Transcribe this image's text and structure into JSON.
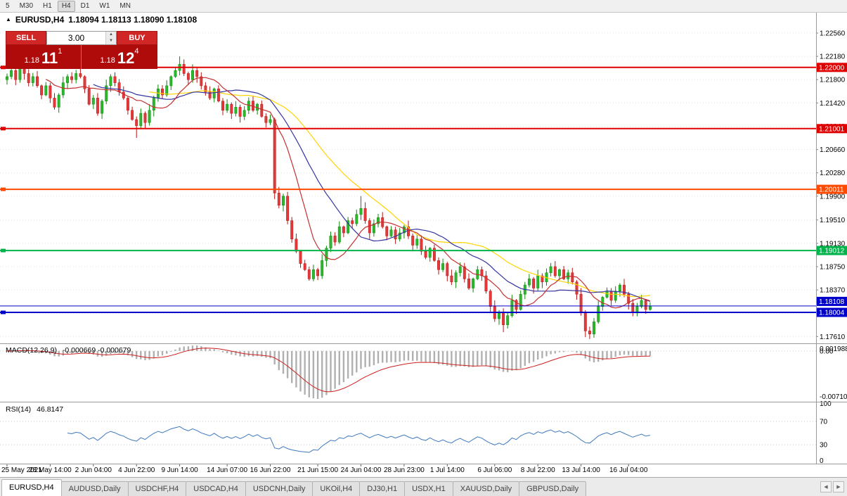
{
  "toolbar": {
    "items": [
      "5",
      "M30",
      "H1",
      "H4",
      "D1",
      "W1",
      "MN"
    ],
    "active": "H4"
  },
  "chart": {
    "marker": "▲",
    "symbol": "EURUSD,H4",
    "ohlc": "1.18094 1.18113 1.18090 1.18108"
  },
  "one_click": {
    "sell_label": "SELL",
    "buy_label": "BUY",
    "volume": "3.00",
    "spinner_up": "▲",
    "spinner_down": "▼",
    "sell_price": {
      "base": "1.18",
      "pips": "11",
      "sup": "1"
    },
    "buy_price": {
      "base": "1.18",
      "pips": "12",
      "sup": "4"
    }
  },
  "chart_data": {
    "type": "candlestick",
    "symbol": "EURUSD",
    "period": "H4",
    "price_axis": {
      "labels": [
        "1.22560",
        "1.22180",
        "1.21800",
        "1.21420",
        "1.21040",
        "1.20660",
        "1.20280",
        "1.19900",
        "1.19510",
        "1.19130",
        "1.18750",
        "1.18370",
        "1.17990",
        "1.17610"
      ],
      "visible_range": {
        "top": 1.2287,
        "bottom": 1.1751
      }
    },
    "time_axis": {
      "labels": [
        "25 May 2021",
        "28 May 14:00",
        "2 Jun 04:00",
        "4 Jun 22:00",
        "9 Jun 14:00",
        "14 Jun 07:00",
        "16 Jun 22:00",
        "21 Jun 15:00",
        "24 Jun 04:00",
        "28 Jun 23:00",
        "1 Jul 14:00",
        "6 Jul 06:00",
        "8 Jul 22:00",
        "13 Jul 14:00",
        "16 Jul 04:00"
      ],
      "indices": [
        0,
        10,
        20,
        30,
        40,
        51,
        61,
        72,
        82,
        92,
        102,
        113,
        123,
        133,
        144
      ]
    },
    "open_first": 1.218,
    "closes": [
      1.2185,
      1.2195,
      1.218,
      1.22,
      1.219,
      1.2175,
      1.2185,
      1.217,
      1.2155,
      1.217,
      1.215,
      1.2135,
      1.2155,
      1.2175,
      1.2185,
      1.218,
      1.219,
      1.2185,
      1.2165,
      1.214,
      1.215,
      1.2125,
      1.2145,
      1.217,
      1.2185,
      1.2175,
      1.216,
      1.215,
      1.213,
      1.2115,
      1.2105,
      1.2125,
      1.211,
      1.213,
      1.215,
      1.2165,
      1.2155,
      1.217,
      1.2185,
      1.2195,
      1.2205,
      1.219,
      1.218,
      1.2195,
      1.2185,
      1.217,
      1.216,
      1.215,
      1.2165,
      1.2145,
      1.213,
      1.214,
      1.2125,
      1.2135,
      1.212,
      1.213,
      1.2145,
      1.213,
      1.214,
      1.212,
      1.211,
      1.2115,
      1.1995,
      1.1975,
      1.199,
      1.195,
      1.192,
      1.19,
      1.188,
      1.187,
      1.1855,
      1.187,
      1.186,
      1.1885,
      1.1905,
      1.1925,
      1.1915,
      1.194,
      1.193,
      1.195,
      1.1945,
      1.196,
      1.197,
      1.195,
      1.193,
      1.1945,
      1.1955,
      1.194,
      1.1925,
      1.1935,
      1.192,
      1.193,
      1.194,
      1.1925,
      1.191,
      1.192,
      1.19,
      1.189,
      1.1905,
      1.1885,
      1.187,
      1.188,
      1.186,
      1.185,
      1.1865,
      1.1875,
      1.1855,
      1.184,
      1.1855,
      1.187,
      1.186,
      1.1835,
      1.181,
      1.179,
      1.18,
      1.178,
      1.1795,
      1.182,
      1.1805,
      1.183,
      1.1845,
      1.1855,
      1.184,
      1.186,
      1.185,
      1.1865,
      1.1875,
      1.186,
      1.187,
      1.1855,
      1.1865,
      1.185,
      1.183,
      1.18,
      1.177,
      1.1765,
      1.1785,
      1.181,
      1.1825,
      1.1835,
      1.182,
      1.1835,
      1.1845,
      1.183,
      1.1815,
      1.18,
      1.181,
      1.182,
      1.1805,
      1.18108
    ],
    "wick_pattern": [
      0.0005,
      0.0008,
      0.0003,
      0.001,
      0.0004,
      0.0007,
      0.0006,
      0.0009,
      0.0002,
      0.0006
    ],
    "wick_overrides": {
      "30": {
        "low": 1.2085
      },
      "40": {
        "high": 1.2218
      },
      "62": {
        "low": 1.1985
      },
      "70": {
        "low": 1.1852
      },
      "72": {
        "low": 1.1853
      },
      "82": {
        "high": 1.199
      },
      "115": {
        "low": 1.1768
      },
      "135": {
        "low": 1.1757
      }
    },
    "colors": {
      "up": "#2db82d",
      "up_stroke": "#0b8a0b",
      "down": "#e23a3a",
      "down_stroke": "#bb1414"
    },
    "hlines": [
      {
        "price": 1.22,
        "label": "1.22000",
        "color": "#e00000",
        "width": 2
      },
      {
        "price": 1.21001,
        "label": "1.21001",
        "color": "#e00000",
        "width": 2
      },
      {
        "price": 1.20011,
        "label": "1.20011",
        "color": "#ff4a00",
        "width": 2
      },
      {
        "price": 1.19012,
        "label": "1.19012",
        "color": "#00b44b",
        "width": 2
      },
      {
        "price": 1.18004,
        "label": "1.18004",
        "color": "#0000cd",
        "width": 2
      }
    ],
    "current_price": {
      "price": 1.18108,
      "label": "1.18108",
      "color": "#0000cd"
    },
    "indicators": {
      "moving_averages": [
        {
          "period": 34,
          "color": "#ffd400"
        },
        {
          "period": 21,
          "color": "#3434a0"
        },
        {
          "period": 10,
          "color": "#c53030"
        }
      ],
      "macd": {
        "label": "MACD(12,26,9)",
        "values": "-0.000669 -0.000679",
        "scale": [
          "0.001988",
          "0.00",
          "-0.00710"
        ],
        "fast": 12,
        "slow": 26,
        "signal": 9,
        "histogram_color": "#b0b0b0",
        "signal_color": "#cc2020"
      },
      "rsi": {
        "label": "RSI(14)",
        "value": "46.8147",
        "period": 14,
        "scale": [
          "100",
          "70",
          "30",
          "0"
        ],
        "levels": [
          70,
          30
        ],
        "color": "#3e78be"
      }
    }
  },
  "tabs": {
    "items": [
      {
        "label": "EURUSD,H4",
        "active": true
      },
      {
        "label": "AUDUSD,Daily",
        "active": false
      },
      {
        "label": "USDCHF,H4",
        "active": false
      },
      {
        "label": "USDCAD,H4",
        "active": false
      },
      {
        "label": "USDCNH,Daily",
        "active": false
      },
      {
        "label": "UKOil,H4",
        "active": false
      },
      {
        "label": "DJ30,H1",
        "active": false
      },
      {
        "label": "USDX,H1",
        "active": false
      },
      {
        "label": "XAUUSD,Daily",
        "active": false
      },
      {
        "label": "GBPUSD,Daily",
        "active": false
      }
    ],
    "scroll_left": "◀",
    "scroll_right": "▶"
  }
}
